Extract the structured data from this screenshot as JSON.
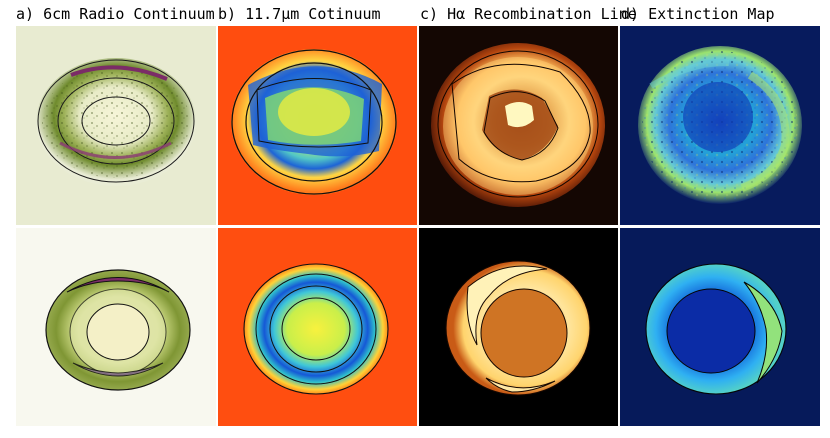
{
  "figure": {
    "columns": [
      {
        "id": "a",
        "title": "a) 6cm Radio Continuum",
        "map": "radio-continuum",
        "colors": {
          "background": "#eef0d6",
          "ring": "#8aa04a",
          "dark": "#3b4a1c",
          "accent": "#7a2a62",
          "center": "#f3f0c6"
        }
      },
      {
        "id": "b",
        "title": "b) 11.7μm Cotinuum",
        "map": "mid-infrared-continuum",
        "colors": {
          "background": "#f24a10",
          "ring": "#ffe24d",
          "band": "#1f6fd8",
          "center": "#e8f040"
        }
      },
      {
        "id": "c",
        "title": "c) Hα Recombination Line",
        "map": "h-alpha-line",
        "colors": {
          "background": "#0a0503",
          "ring": "#ffe58a",
          "outer": "#c84a12",
          "center": "#d0761e"
        }
      },
      {
        "id": "d",
        "title": "d) Extinction Map",
        "map": "extinction",
        "colors": {
          "background": "#061a5a",
          "ring": "#33a8f0",
          "accent": "#9ee05a",
          "center": "#0b2aa8"
        }
      }
    ],
    "rows": [
      {
        "kind": "observed"
      },
      {
        "kind": "model"
      }
    ]
  }
}
